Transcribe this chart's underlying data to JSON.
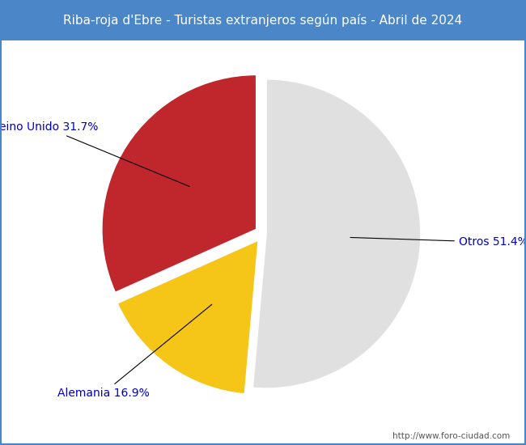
{
  "title": "Riba-roja d'Ebre - Turistas extranjeros según país - Abril de 2024",
  "title_bg_color": "#4a86c8",
  "title_text_color": "#ffffff",
  "footer_text": "http://www.foro-ciudad.com",
  "footer_color": "#555555",
  "background_color": "#ffffff",
  "border_color": "#4a86c8",
  "slices": [
    {
      "label": "Otros",
      "pct": 51.4,
      "color": "#e0e0e0"
    },
    {
      "label": "Alemania",
      "pct": 16.9,
      "color": "#f5c518"
    },
    {
      "label": "Reino Unido",
      "pct": 31.7,
      "color": "#c0272d"
    }
  ],
  "label_color": "#0000cc",
  "label_fontsize": 10,
  "startangle": 90,
  "explode": [
    0.02,
    0.05,
    0.05
  ]
}
